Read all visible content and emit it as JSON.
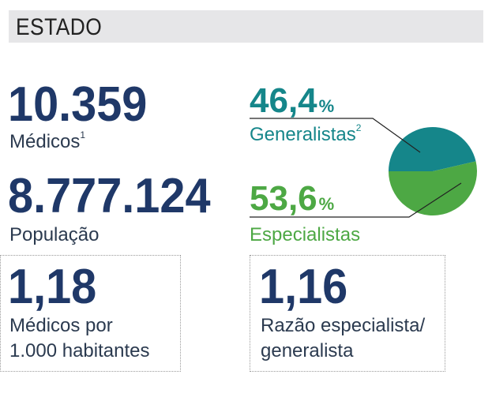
{
  "header": {
    "title": "ESTADO"
  },
  "stats": {
    "medicos": {
      "value": "10.359",
      "label": "Médicos",
      "note": "1"
    },
    "populacao": {
      "value": "8.777.124",
      "label": "População"
    },
    "medicos_por_mil": {
      "value": "1,18",
      "label_line1": "Médicos por",
      "label_line2": "1.000 habitantes"
    },
    "razao": {
      "value": "1,16",
      "label_line1": "Razão especialista/",
      "label_line2": "generalista"
    }
  },
  "chart_data": {
    "type": "pie",
    "slices": [
      {
        "label": "Generalistas",
        "note": "2",
        "value": 46.4,
        "display": "46,4",
        "unit": "%",
        "color": "#15868a"
      },
      {
        "label": "Especialistas",
        "value": 53.6,
        "display": "53,6",
        "unit": "%",
        "color": "#4da844"
      }
    ]
  },
  "colors": {
    "navy": "#1f3868",
    "teal": "#15868a",
    "green": "#4da844",
    "header_bg": "#e6e6e8"
  }
}
